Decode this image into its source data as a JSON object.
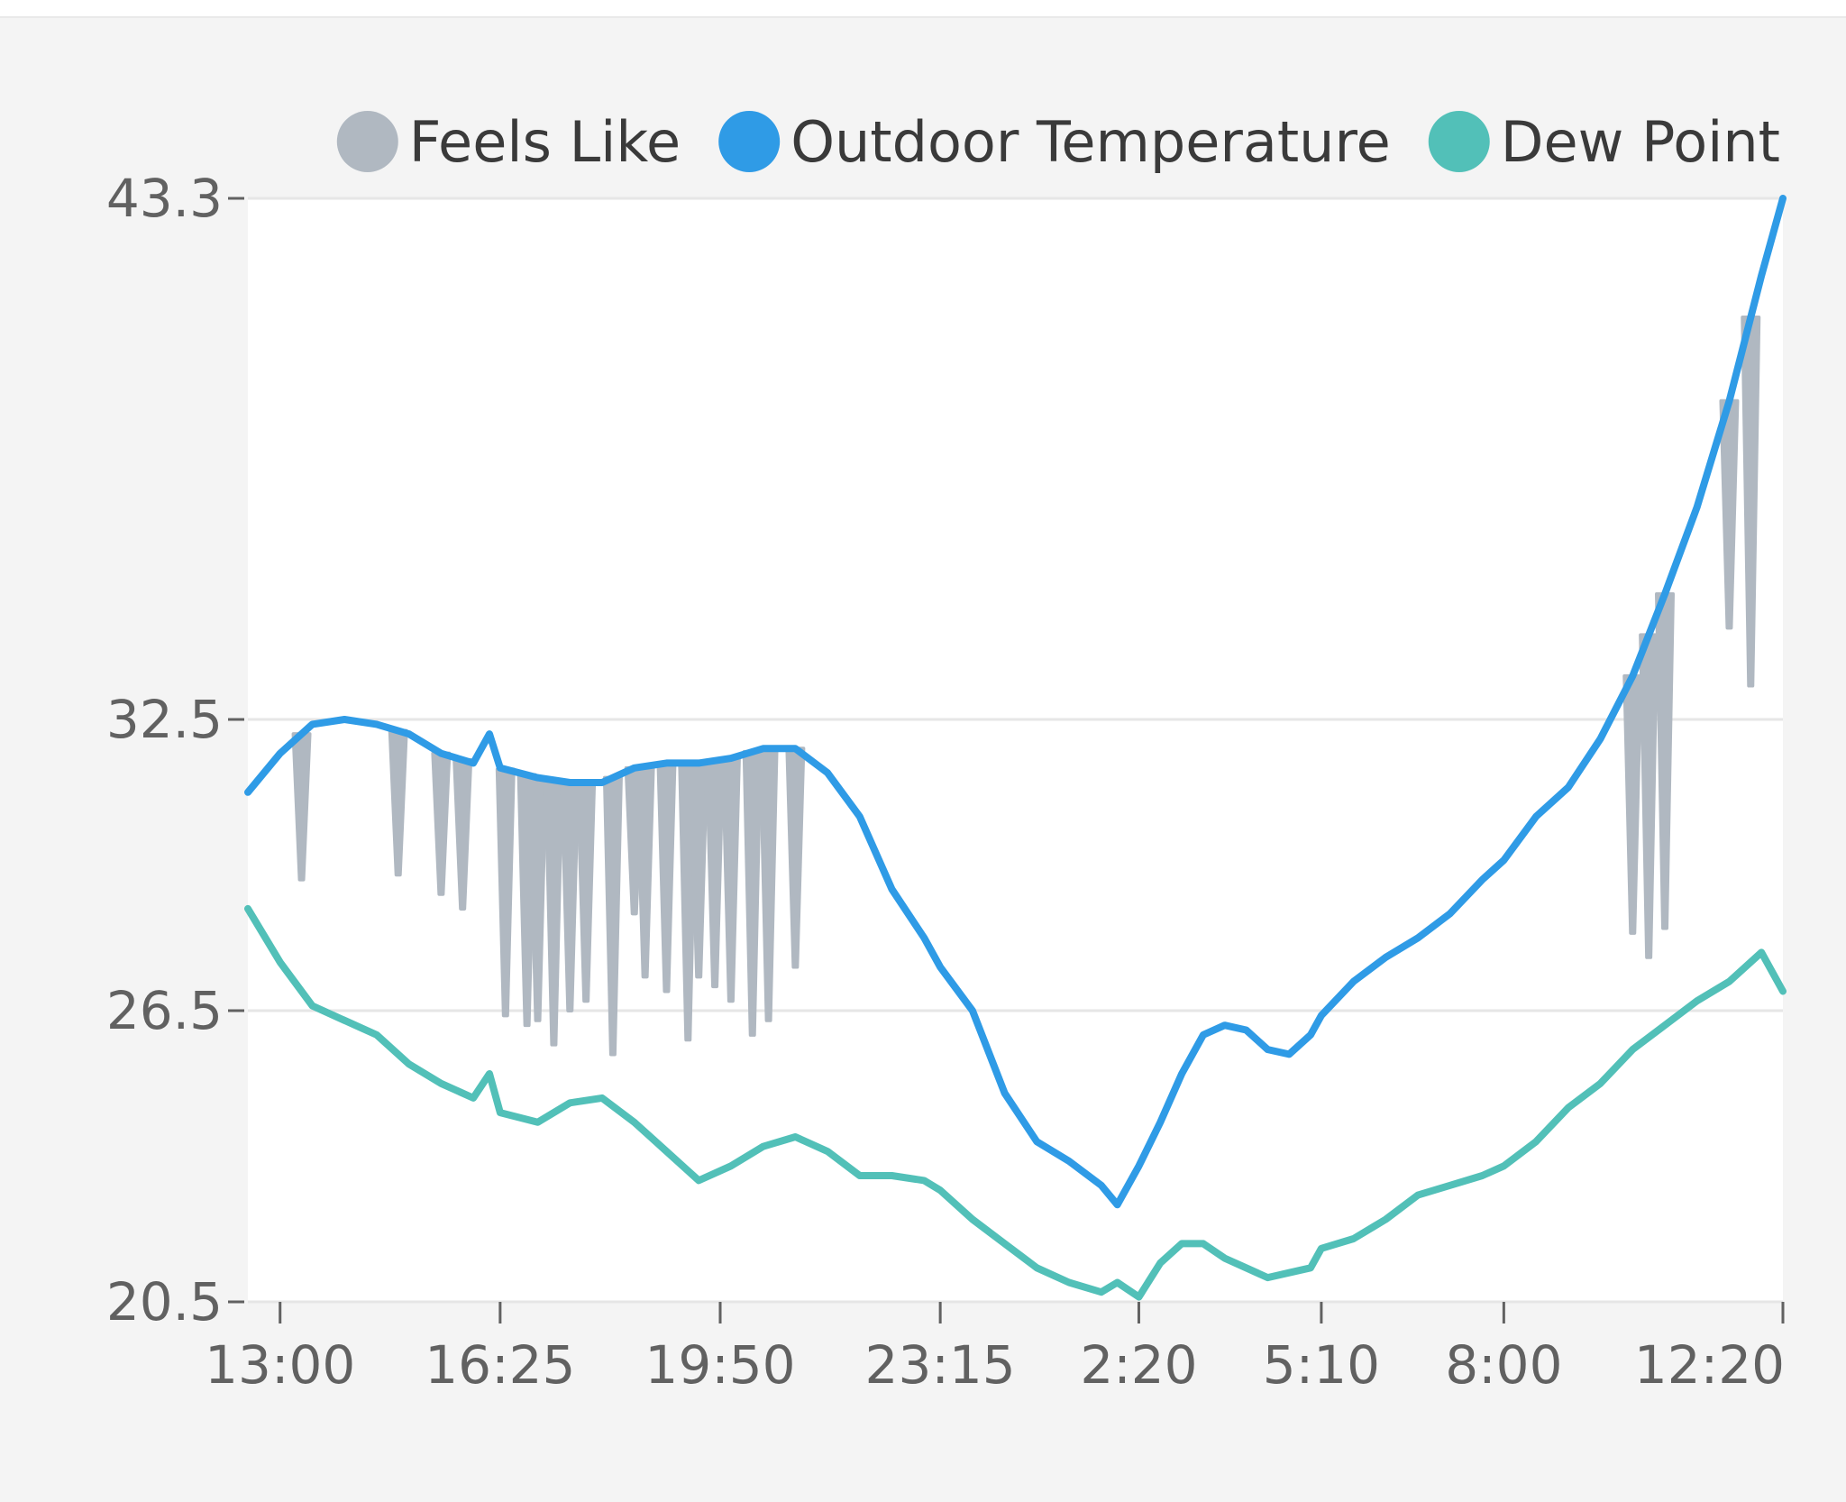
{
  "chart_data": {
    "type": "line",
    "legend": [
      {
        "label": "Feels Like",
        "color": "#b0b8c1"
      },
      {
        "label": "Outdoor Temperature",
        "color": "#2f9be6"
      },
      {
        "label": "Dew Point",
        "color": "#52c0b8"
      }
    ],
    "legend_position": "top",
    "y_ticks": [
      "43.3",
      "32.5",
      "26.5",
      "20.5"
    ],
    "x_ticks": [
      "13:00",
      "16:25",
      "19:50",
      "23:15",
      "2:20",
      "5:10",
      "8:00",
      "12:20"
    ],
    "ylim": [
      20.5,
      43.3
    ],
    "grid": true,
    "series": [
      {
        "name": "Outdoor Temperature",
        "color": "#2f9be6",
        "points": [
          [
            "12:30",
            31.0
          ],
          [
            "13:00",
            31.8
          ],
          [
            "13:30",
            32.4
          ],
          [
            "14:00",
            32.5
          ],
          [
            "14:30",
            32.4
          ],
          [
            "15:00",
            32.2
          ],
          [
            "15:30",
            31.8
          ],
          [
            "16:00",
            31.6
          ],
          [
            "16:15",
            32.2
          ],
          [
            "16:25",
            31.5
          ],
          [
            "17:00",
            31.3
          ],
          [
            "17:30",
            31.2
          ],
          [
            "18:00",
            31.2
          ],
          [
            "18:30",
            31.5
          ],
          [
            "19:00",
            31.6
          ],
          [
            "19:30",
            31.6
          ],
          [
            "20:00",
            31.7
          ],
          [
            "20:30",
            31.9
          ],
          [
            "21:00",
            31.9
          ],
          [
            "21:30",
            31.4
          ],
          [
            "22:00",
            30.5
          ],
          [
            "22:30",
            29.0
          ],
          [
            "23:00",
            28.0
          ],
          [
            "23:15",
            27.4
          ],
          [
            "23:45",
            26.5
          ],
          [
            "0:15",
            24.8
          ],
          [
            "0:45",
            23.8
          ],
          [
            "1:15",
            23.4
          ],
          [
            "1:45",
            22.9
          ],
          [
            "2:00",
            22.5
          ],
          [
            "2:20",
            23.3
          ],
          [
            "2:40",
            24.2
          ],
          [
            "3:00",
            25.2
          ],
          [
            "3:20",
            26.0
          ],
          [
            "3:40",
            26.2
          ],
          [
            "4:00",
            26.1
          ],
          [
            "4:20",
            25.7
          ],
          [
            "4:40",
            25.6
          ],
          [
            "5:00",
            26.0
          ],
          [
            "5:10",
            26.4
          ],
          [
            "5:40",
            27.1
          ],
          [
            "6:10",
            27.6
          ],
          [
            "6:40",
            28.0
          ],
          [
            "7:10",
            28.5
          ],
          [
            "7:40",
            29.2
          ],
          [
            "8:00",
            29.6
          ],
          [
            "8:30",
            30.5
          ],
          [
            "9:00",
            31.1
          ],
          [
            "9:30",
            32.1
          ],
          [
            "10:00",
            33.4
          ],
          [
            "10:30",
            35.1
          ],
          [
            "11:00",
            36.9
          ],
          [
            "11:30",
            39.1
          ],
          [
            "12:00",
            41.7
          ],
          [
            "12:20",
            43.3
          ]
        ]
      },
      {
        "name": "Dew Point",
        "color": "#52c0b8",
        "points": [
          [
            "12:30",
            28.6
          ],
          [
            "13:00",
            27.5
          ],
          [
            "13:30",
            26.6
          ],
          [
            "14:00",
            26.3
          ],
          [
            "14:30",
            26.0
          ],
          [
            "15:00",
            25.4
          ],
          [
            "15:30",
            25.0
          ],
          [
            "16:00",
            24.7
          ],
          [
            "16:15",
            25.2
          ],
          [
            "16:25",
            24.4
          ],
          [
            "17:00",
            24.2
          ],
          [
            "17:30",
            24.6
          ],
          [
            "18:00",
            24.7
          ],
          [
            "18:30",
            24.2
          ],
          [
            "19:00",
            23.6
          ],
          [
            "19:30",
            23.0
          ],
          [
            "20:00",
            23.3
          ],
          [
            "20:30",
            23.7
          ],
          [
            "21:00",
            23.9
          ],
          [
            "21:30",
            23.6
          ],
          [
            "22:00",
            23.1
          ],
          [
            "22:30",
            23.1
          ],
          [
            "23:00",
            23.0
          ],
          [
            "23:15",
            22.8
          ],
          [
            "23:45",
            22.2
          ],
          [
            "0:15",
            21.7
          ],
          [
            "0:45",
            21.2
          ],
          [
            "1:15",
            20.9
          ],
          [
            "1:45",
            20.7
          ],
          [
            "2:00",
            20.9
          ],
          [
            "2:20",
            20.6
          ],
          [
            "2:40",
            21.3
          ],
          [
            "3:00",
            21.7
          ],
          [
            "3:20",
            21.7
          ],
          [
            "3:40",
            21.4
          ],
          [
            "4:00",
            21.2
          ],
          [
            "4:20",
            21.0
          ],
          [
            "4:40",
            21.1
          ],
          [
            "5:00",
            21.2
          ],
          [
            "5:10",
            21.6
          ],
          [
            "5:40",
            21.8
          ],
          [
            "6:10",
            22.2
          ],
          [
            "6:40",
            22.7
          ],
          [
            "7:10",
            22.9
          ],
          [
            "7:40",
            23.1
          ],
          [
            "8:00",
            23.3
          ],
          [
            "8:30",
            23.8
          ],
          [
            "9:00",
            24.5
          ],
          [
            "9:30",
            25.0
          ],
          [
            "10:00",
            25.7
          ],
          [
            "10:30",
            26.2
          ],
          [
            "11:00",
            26.7
          ],
          [
            "11:30",
            27.1
          ],
          [
            "12:00",
            27.7
          ],
          [
            "12:20",
            26.9
          ]
        ]
      },
      {
        "name": "Feels Like",
        "color": "#b0b8c1",
        "points": [
          [
            "13:20",
            29.2
          ],
          [
            "14:50",
            29.3
          ],
          [
            "15:30",
            28.9
          ],
          [
            "15:50",
            28.6
          ],
          [
            "16:30",
            26.4
          ],
          [
            "16:50",
            26.2
          ],
          [
            "17:00",
            26.3
          ],
          [
            "17:15",
            25.8
          ],
          [
            "17:30",
            26.5
          ],
          [
            "17:45",
            26.7
          ],
          [
            "18:10",
            25.6
          ],
          [
            "18:30",
            28.5
          ],
          [
            "18:40",
            27.2
          ],
          [
            "19:00",
            26.9
          ],
          [
            "19:20",
            25.9
          ],
          [
            "19:30",
            27.2
          ],
          [
            "19:45",
            27.0
          ],
          [
            "20:00",
            26.7
          ],
          [
            "20:20",
            26.0
          ],
          [
            "20:35",
            26.3
          ],
          [
            "21:00",
            27.4
          ],
          [
            "10:00",
            28.1
          ],
          [
            "10:15",
            27.6
          ],
          [
            "10:30",
            28.2
          ],
          [
            "11:30",
            34.4
          ],
          [
            "11:50",
            33.2
          ]
        ]
      }
    ]
  }
}
